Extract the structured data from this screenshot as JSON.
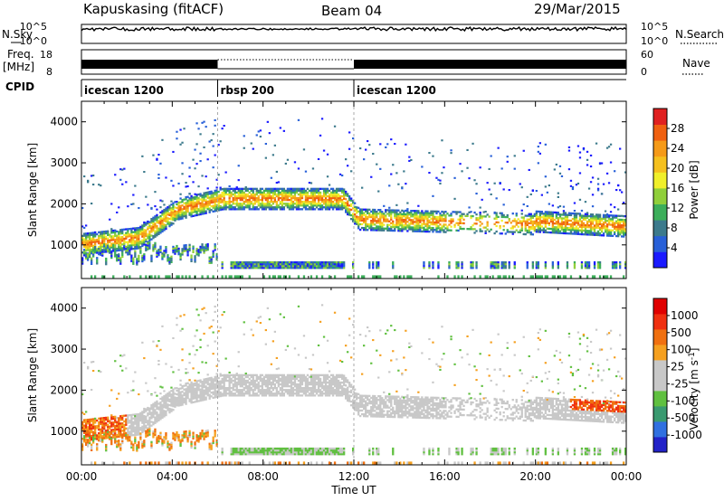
{
  "header": {
    "station_title": "Kapuskasing (fitACF)",
    "beam_label": "Beam 04",
    "date_label": "29/Mar/2015"
  },
  "top_panels": {
    "noise": {
      "left_label": "N.Sky",
      "right_label": "N.Search",
      "left_ticks": [
        "10^5",
        "10^0"
      ],
      "right_ticks": [
        "10^5",
        "10^0"
      ]
    },
    "frequency": {
      "left_label_line1": "Freq.",
      "left_label_line2": "[MHz]",
      "right_label": "Nave",
      "left_ticks": [
        "18",
        "8"
      ],
      "right_ticks": [
        "60",
        "0"
      ]
    },
    "cpid": {
      "label": "CPID",
      "segments": [
        {
          "name": "icescan 1200",
          "start_hour": 0,
          "end_hour": 6
        },
        {
          "name": "rbsp 200",
          "start_hour": 6,
          "end_hour": 12
        },
        {
          "name": "icescan 1200",
          "start_hour": 12,
          "end_hour": 24
        }
      ]
    }
  },
  "chart_data": [
    {
      "type": "heatmap",
      "title": "",
      "quantity": "Power",
      "xlabel": "",
      "ylabel": "Slant Range [km]",
      "xlim": [
        0,
        24
      ],
      "ylim": [
        180,
        4500
      ],
      "yticks": [
        "1000",
        "2000",
        "3000",
        "4000"
      ],
      "colorbar_label": "Power [dB]",
      "colorbar_range": [
        0,
        30
      ],
      "colorbar_ticks": [
        "4",
        "8",
        "12",
        "16",
        "20",
        "24",
        "28"
      ],
      "colors": [
        "#1a1aff",
        "#2860d8",
        "#3c7a8c",
        "#3cae5a",
        "#90cf3a",
        "#f0ef2a",
        "#f5c01e",
        "#f59a18",
        "#f06010",
        "#e02020"
      ],
      "grid": false
    },
    {
      "type": "heatmap",
      "title": "",
      "quantity": "Velocity",
      "xlabel": "Time UT",
      "ylabel": "Slant Range [km]",
      "xlim": [
        0,
        24
      ],
      "ylim": [
        180,
        4500
      ],
      "xticks": [
        "00:00",
        "04:00",
        "08:00",
        "12:00",
        "16:00",
        "20:00",
        "00:00"
      ],
      "yticks": [
        "1000",
        "2000",
        "3000",
        "4000"
      ],
      "colorbar_label": "Velocity [m s",
      "colorbar_unit_exponent": "-1",
      "colorbar_label_close": "]",
      "colorbar_ticks": [
        "1000",
        "500",
        "100",
        "25",
        "-25",
        "-100",
        "-500",
        "-1000"
      ],
      "colors": [
        "#2222c8",
        "#3070e0",
        "#3a9a70",
        "#60c040",
        "#c8c8c8",
        "#c8c8c8",
        "#f5a020",
        "#f07010",
        "#f03010",
        "#e00000"
      ],
      "grid": false
    }
  ]
}
